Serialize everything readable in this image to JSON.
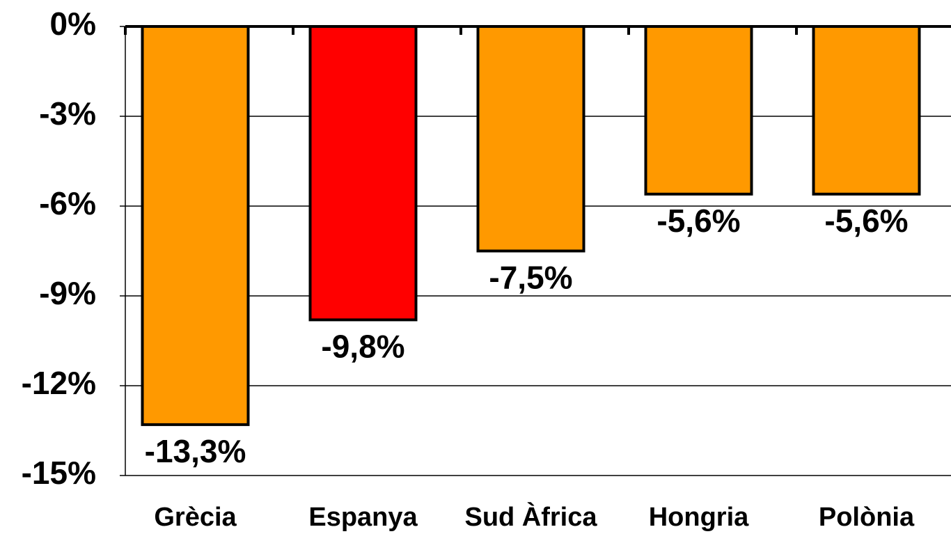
{
  "chart_data": {
    "type": "bar",
    "categories": [
      "Grècia",
      "Espanya",
      "Sud Àfrica",
      "Hongria",
      "Polònia"
    ],
    "values": [
      -13.3,
      -9.8,
      -7.5,
      -5.6,
      -5.6
    ],
    "value_labels": [
      "-13,3%",
      "-9,8%",
      "-7,5%",
      "-5,6%",
      "-5,6%"
    ],
    "colors": [
      "#ff9900",
      "#ff0000",
      "#ff9900",
      "#ff9900",
      "#ff9900"
    ],
    "ylim": [
      -15,
      0
    ],
    "yticks": [
      {
        "value": 0,
        "label": "0%"
      },
      {
        "value": -3,
        "label": "-3%"
      },
      {
        "value": -6,
        "label": "-6%"
      },
      {
        "value": -9,
        "label": "-9%"
      },
      {
        "value": -12,
        "label": "-12%"
      },
      {
        "value": -15,
        "label": "-15%"
      }
    ],
    "grid": true
  }
}
